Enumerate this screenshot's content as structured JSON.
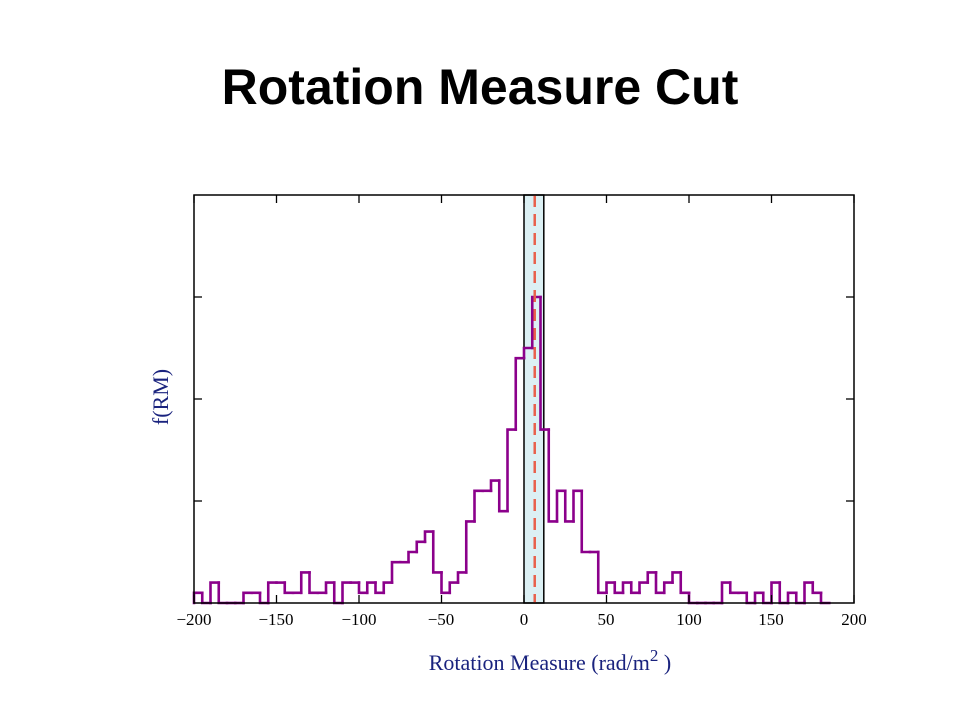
{
  "slide": {
    "title": "Rotation Measure Cut"
  },
  "colors": {
    "histogram": "#8b008b",
    "band_fill": "#dcf0f4",
    "cut_line": "#e8604c",
    "axis_label": "#1a237e",
    "frame": "#000000"
  },
  "chart_data": {
    "type": "histogram",
    "title": "Rotation Measure Cut",
    "xlabel": "Rotation Measure (rad/m",
    "xlabel_superscript": "2",
    "xlabel_suffix": " )",
    "ylabel": "f(RM)",
    "xlim": [
      -200,
      200
    ],
    "ylim": [
      0,
      40
    ],
    "x_ticks": [
      -200,
      -150,
      -100,
      -50,
      0,
      50,
      100,
      150,
      200
    ],
    "x_tick_labels": [
      "−200",
      "−150",
      "−100",
      "−50",
      "0",
      "50",
      "100",
      "150",
      "200"
    ],
    "y_ticks": [
      10,
      20,
      30
    ],
    "y_tick_labels_shown": false,
    "bin_width": 5,
    "bin_starts": [
      -200,
      -195,
      -190,
      -185,
      -180,
      -175,
      -170,
      -165,
      -160,
      -155,
      -150,
      -145,
      -140,
      -135,
      -130,
      -125,
      -120,
      -115,
      -110,
      -105,
      -100,
      -95,
      -90,
      -85,
      -80,
      -75,
      -70,
      -65,
      -60,
      -55,
      -50,
      -45,
      -40,
      -35,
      -30,
      -25,
      -20,
      -15,
      -10,
      -5,
      0,
      5,
      10,
      15,
      20,
      25,
      30,
      35,
      40,
      45,
      50,
      55,
      60,
      65,
      70,
      75,
      80,
      85,
      90,
      95,
      100,
      105,
      110,
      115,
      120,
      125,
      130,
      135,
      140,
      145,
      150,
      155,
      160,
      165,
      170,
      175,
      180
    ],
    "counts": [
      1,
      0,
      2,
      0,
      0,
      0,
      1,
      1,
      0,
      2,
      2,
      1,
      1,
      3,
      1,
      1,
      2,
      0,
      2,
      2,
      1,
      2,
      1,
      2,
      4,
      4,
      5,
      6,
      7,
      3,
      1,
      2,
      3,
      8,
      11,
      11,
      12,
      9,
      17,
      24,
      25,
      30,
      17,
      8,
      11,
      8,
      11,
      5,
      5,
      1,
      2,
      1,
      2,
      1,
      2,
      3,
      1,
      2,
      3,
      1,
      0,
      0,
      0,
      0,
      2,
      1,
      1,
      0,
      1,
      0,
      2,
      0,
      1,
      0,
      2,
      1,
      0
    ],
    "cut_band": [
      0,
      12
    ],
    "cut_center": 6.5,
    "grid": false,
    "legend": "none"
  }
}
